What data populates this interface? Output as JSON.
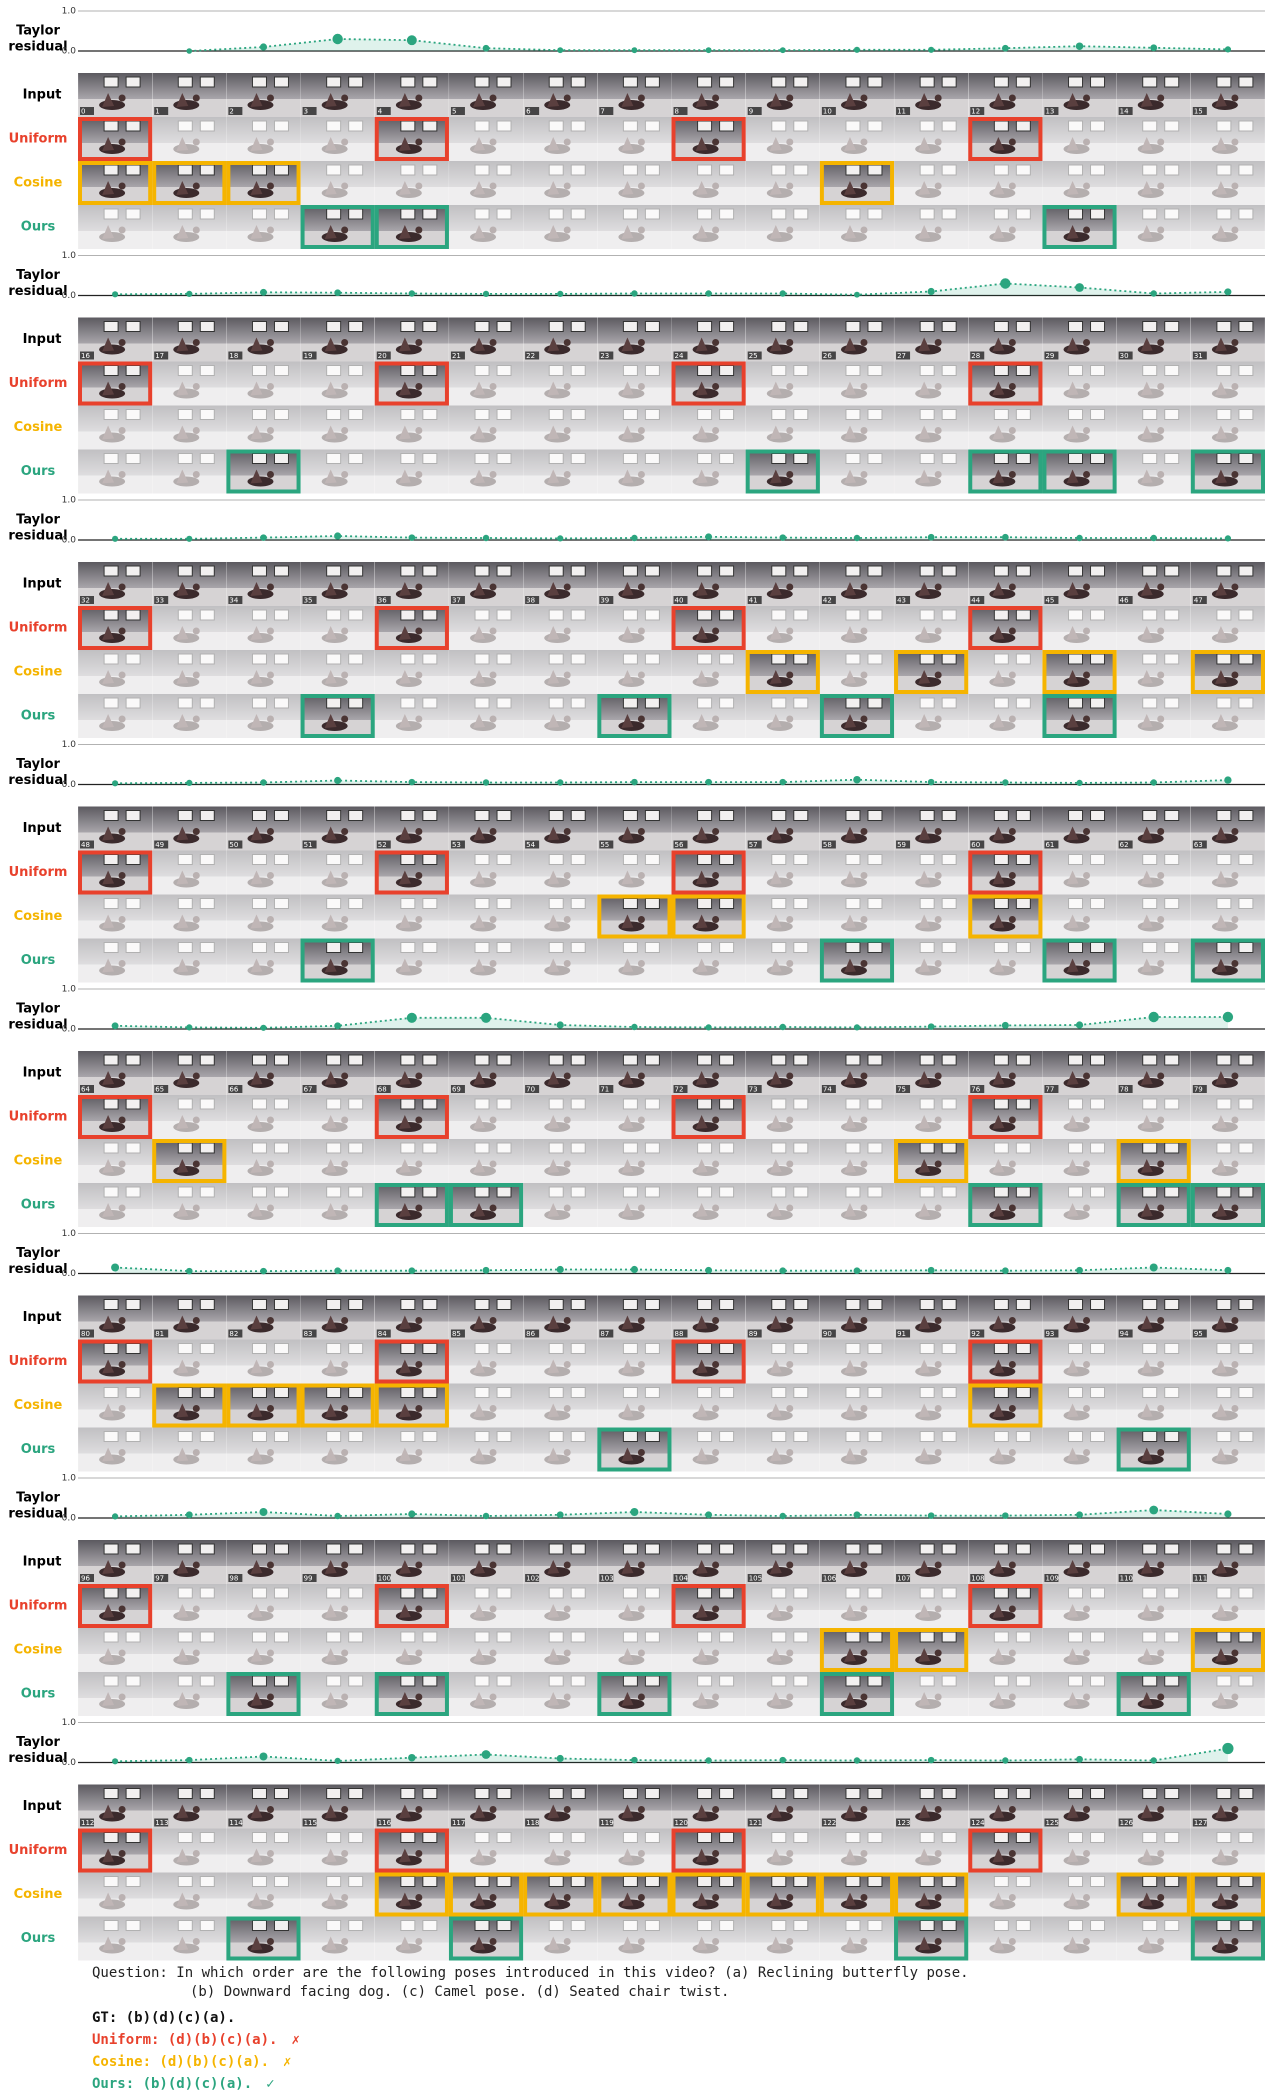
{
  "residual_label": [
    "Taylor",
    "residual"
  ],
  "residual_axis": {
    "ylim": [
      0,
      1
    ],
    "yticks": [
      {
        "value": 0,
        "label": "0.0"
      },
      {
        "value": 1,
        "label": "1.0"
      }
    ]
  },
  "residual_color": "#2ba57f",
  "input_label": "Input",
  "methods": [
    {
      "name": "Uniform",
      "color": "#e8412c"
    },
    {
      "name": "Cosine",
      "color": "#f5b400"
    },
    {
      "name": "Ours",
      "color": "#2ba57f"
    }
  ],
  "blocks": [
    {
      "frames": [
        0,
        1,
        2,
        3,
        4,
        5,
        6,
        7,
        8,
        9,
        10,
        11,
        12,
        13,
        14,
        15
      ],
      "residual": [
        null,
        0,
        0.1,
        0.3,
        0.27,
        0.07,
        0.02,
        0.02,
        0.02,
        0.02,
        0.03,
        0.03,
        0.07,
        0.12,
        0.08,
        0.04
      ],
      "selected": [
        [
          0,
          4,
          8,
          12
        ],
        [
          0,
          1,
          2,
          10
        ],
        [
          3,
          4,
          13
        ]
      ]
    },
    {
      "frames": [
        16,
        17,
        18,
        19,
        20,
        21,
        22,
        23,
        24,
        25,
        26,
        27,
        28,
        29,
        30,
        31
      ],
      "residual": [
        0.03,
        0.04,
        0.08,
        0.07,
        0.05,
        0.04,
        0.04,
        0.05,
        0.05,
        0.05,
        0.02,
        0.1,
        0.3,
        0.2,
        0.05,
        0.09
      ],
      "selected": [
        [
          0,
          4,
          8,
          12
        ],
        [],
        [
          2,
          9,
          12,
          13,
          15
        ]
      ]
    },
    {
      "frames": [
        32,
        33,
        34,
        35,
        36,
        37,
        38,
        39,
        40,
        41,
        42,
        43,
        44,
        45,
        46,
        47
      ],
      "residual": [
        0.03,
        0.03,
        0.06,
        0.1,
        0.06,
        0.05,
        0.04,
        0.05,
        0.08,
        0.06,
        0.05,
        0.07,
        0.07,
        0.05,
        0.05,
        0.04
      ],
      "selected": [
        [
          0,
          4,
          8,
          12
        ],
        [
          9,
          11,
          13,
          15
        ],
        [
          3,
          7,
          10,
          13
        ]
      ]
    },
    {
      "frames": [
        48,
        49,
        50,
        51,
        52,
        53,
        54,
        55,
        56,
        57,
        58,
        59,
        60,
        61,
        62,
        63
      ],
      "residual": [
        0.03,
        0.04,
        0.05,
        0.1,
        0.06,
        0.05,
        0.05,
        0.06,
        0.06,
        0.06,
        0.12,
        0.06,
        0.05,
        0.04,
        0.05,
        0.11
      ],
      "selected": [
        [
          0,
          4,
          8,
          12
        ],
        [
          7,
          8,
          12
        ],
        [
          3,
          10,
          13,
          15
        ]
      ]
    },
    {
      "frames": [
        64,
        65,
        66,
        67,
        68,
        69,
        70,
        71,
        72,
        73,
        74,
        75,
        76,
        77,
        78,
        79
      ],
      "residual": [
        0.08,
        0.04,
        0.03,
        0.08,
        0.28,
        0.28,
        0.1,
        0.05,
        0.04,
        0.05,
        0.04,
        0.06,
        0.09,
        0.1,
        0.3,
        0.3
      ],
      "selected": [
        [
          0,
          4,
          8,
          12
        ],
        [
          1,
          11,
          14
        ],
        [
          4,
          5,
          12,
          14,
          15
        ]
      ]
    },
    {
      "frames": [
        80,
        81,
        82,
        83,
        84,
        85,
        86,
        87,
        88,
        89,
        90,
        91,
        92,
        93,
        94,
        95
      ],
      "residual": [
        0.15,
        0.06,
        0.06,
        0.07,
        0.07,
        0.08,
        0.1,
        0.1,
        0.08,
        0.07,
        0.07,
        0.08,
        0.07,
        0.08,
        0.15,
        0.08
      ],
      "selected": [
        [
          0,
          4,
          8,
          12
        ],
        [
          1,
          2,
          3,
          4,
          12
        ],
        [
          7,
          14
        ]
      ]
    },
    {
      "frames": [
        96,
        97,
        98,
        99,
        100,
        101,
        102,
        103,
        104,
        105,
        106,
        107,
        108,
        109,
        110,
        111
      ],
      "residual": [
        0.04,
        0.08,
        0.15,
        0.05,
        0.1,
        0.05,
        0.08,
        0.15,
        0.08,
        0.05,
        0.08,
        0.06,
        0.06,
        0.08,
        0.2,
        0.1
      ],
      "selected": [
        [
          0,
          4,
          8,
          12
        ],
        [
          10,
          11,
          15
        ],
        [
          2,
          4,
          7,
          10,
          14
        ]
      ]
    },
    {
      "frames": [
        112,
        113,
        114,
        115,
        116,
        117,
        118,
        119,
        120,
        121,
        122,
        123,
        124,
        125,
        126,
        127
      ],
      "residual": [
        0.03,
        0.06,
        0.15,
        0.04,
        0.12,
        0.2,
        0.1,
        0.06,
        0.05,
        0.06,
        0.05,
        0.06,
        0.05,
        0.08,
        0.05,
        0.35
      ],
      "selected": [
        [
          0,
          4,
          8,
          12
        ],
        [
          4,
          5,
          6,
          7,
          8,
          9,
          10,
          11,
          14,
          15
        ],
        [
          2,
          5,
          11,
          15
        ]
      ]
    }
  ],
  "question": [
    "Question: In which order are the following poses introduced in this video? (a) Reclining butterfly pose.",
    "(b) Downward facing dog. (c) Camel pose. (d) Seated chair twist."
  ],
  "gt": "GT: (b)(d)(c)(a).",
  "answers": [
    {
      "text": "Uniform: (d)(b)(c)(a).",
      "mark": "✗"
    },
    {
      "text": "Cosine: (d)(b)(c)(a).",
      "mark": "✗"
    },
    {
      "text": "Ours: (b)(d)(c)(a).",
      "mark": "✓"
    }
  ]
}
